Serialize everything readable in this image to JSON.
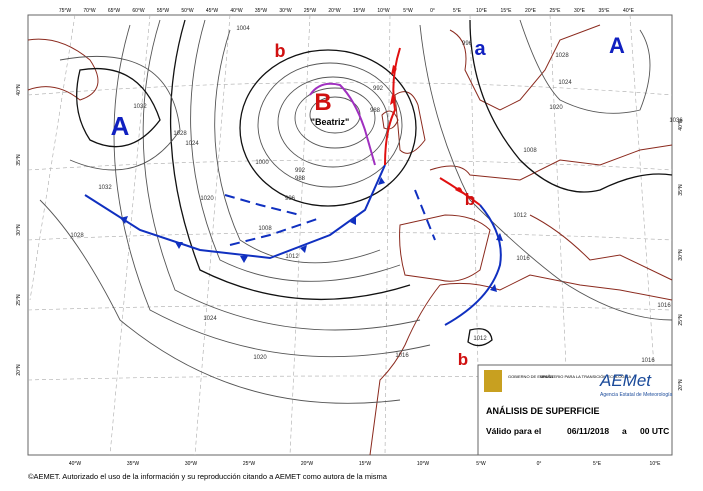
{
  "map": {
    "top_longitudes": [
      "75°W",
      "70°W",
      "65°W",
      "60°W",
      "55°W",
      "50°W",
      "45°W",
      "40°W",
      "35°W",
      "30°W",
      "25°W",
      "20°W",
      "15°W",
      "10°W",
      "5°W",
      "0°",
      "5°E",
      "10°E",
      "15°E",
      "20°E",
      "25°E",
      "30°E",
      "35°E",
      "40°E"
    ],
    "bottom_longitudes": [
      "40°W",
      "35°W",
      "30°W",
      "25°W",
      "20°W",
      "15°W",
      "10°W",
      "5°W",
      "0°",
      "5°E",
      "10°E"
    ],
    "left_latitudes": [
      "40°N",
      "35°N",
      "30°N",
      "25°N",
      "20°N"
    ],
    "right_latitudes": [
      "40°N",
      "35°N",
      "30°N",
      "25°N",
      "20°N"
    ],
    "systems": [
      {
        "label": "A",
        "kind": "high"
      },
      {
        "label": "A",
        "kind": "high"
      },
      {
        "label": "a",
        "kind": "high"
      },
      {
        "label": "B",
        "kind": "low"
      },
      {
        "label": "b",
        "kind": "low"
      },
      {
        "label": "b",
        "kind": "low"
      },
      {
        "label": "b",
        "kind": "low"
      }
    ],
    "storm_name": "\"Beatriz\"",
    "isobar_labels": [
      1032,
      1028,
      1024,
      1020,
      1008,
      1012,
      1004,
      1000,
      996,
      992,
      988,
      988,
      992,
      1032,
      1028,
      1024,
      1020,
      1016,
      1012,
      1012,
      1016,
      1016,
      1016,
      1020,
      1024,
      1028,
      1008,
      996,
      1036
    ]
  },
  "panel": {
    "government": "GOBIERNO DE ESPAÑA",
    "ministry": "MINISTERIO PARA LA TRANSICIÓN ECOLÓGICA",
    "logo": "AEMet",
    "agency": "Agencia Estatal de Meteorología",
    "title": "ANÁLISIS DE SUPERFICIE",
    "valid_label": "Válido para el",
    "date": "06/11/2018",
    "connector": "a",
    "time": "00 UTC"
  },
  "footer": "©AEMET. Autorizado el uso de la información y su reproducción citando a AEMET como autora de la misma"
}
